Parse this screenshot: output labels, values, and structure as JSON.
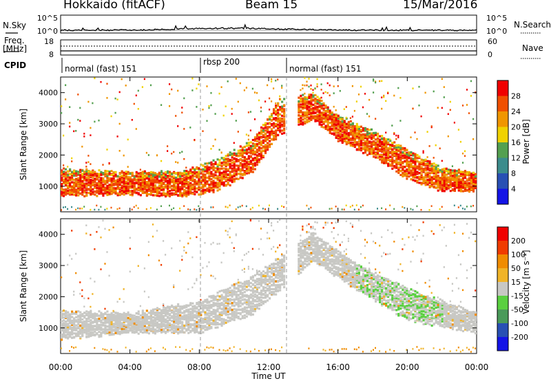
{
  "header": {
    "station": "Hokkaido (fitACF)",
    "beam": "Beam 15",
    "date": "15/Mar/2016"
  },
  "left_labels": {
    "nsky": "N.Sky",
    "freq_line1": "Freq.",
    "freq_line2": "[MHz]",
    "cpid": "CPID"
  },
  "right_labels": {
    "nsearch": "N.Search",
    "nave": "Nave"
  },
  "noise_panel": {
    "left_ticks": [
      "10^5",
      "10^0"
    ],
    "right_ticks": [
      "10^5",
      "10^0"
    ]
  },
  "freq_panel": {
    "left_ticks": [
      "18",
      "8"
    ],
    "right_ticks": [
      "60",
      "0"
    ]
  },
  "cpid_panel": {
    "modes": [
      {
        "label": "normal (fast) 151",
        "start_hour": 0,
        "end_hour": 8
      },
      {
        "label": "rbsp 200",
        "start_hour": 8,
        "end_hour": 13
      },
      {
        "label": "normal (fast) 151",
        "start_hour": 13,
        "end_hour": 24
      }
    ]
  },
  "colors": {
    "power_scale": [
      "#1414e6",
      "#2850b4",
      "#3c8c8c",
      "#54a050",
      "#f0d200",
      "#f09600",
      "#f05000",
      "#f00000"
    ],
    "velocity_scale": [
      "#1414e6",
      "#2850b4",
      "#4a9a5a",
      "#5ad040",
      "#c8c8c4",
      "#f0b428",
      "#f08c00",
      "#f03c00",
      "#f00000"
    ]
  },
  "chart_data": [
    {
      "type": "heatmap",
      "panel": "power",
      "ylabel": "Slant Range [km]",
      "xlabel": "Time UT",
      "x_ticks": [
        "00:00",
        "04:00",
        "08:00",
        "12:00",
        "16:00",
        "20:00",
        "00:00"
      ],
      "y_ticks": [
        1000,
        2000,
        3000,
        4000
      ],
      "x_range_hours": [
        0,
        24
      ],
      "y_range_km": [
        180,
        4500
      ],
      "colorbar": {
        "label": "Power [dB]",
        "ticks": [
          4,
          8,
          12,
          16,
          20,
          24,
          28
        ],
        "range": [
          0,
          32
        ]
      },
      "dominant_band": [
        {
          "hour": 0,
          "lo": 750,
          "hi": 1600
        },
        {
          "hour": 4,
          "lo": 800,
          "hi": 1500
        },
        {
          "hour": 7,
          "lo": 750,
          "hi": 1500
        },
        {
          "hour": 9,
          "lo": 900,
          "hi": 1900
        },
        {
          "hour": 11,
          "lo": 1500,
          "hi": 2500
        },
        {
          "hour": 12.5,
          "lo": 2700,
          "hi": 3800
        },
        {
          "hour": 14.5,
          "lo": 3200,
          "hi": 4000
        },
        {
          "hour": 16,
          "lo": 2500,
          "hi": 3300
        },
        {
          "hour": 18,
          "lo": 2000,
          "hi": 2800
        },
        {
          "hour": 20,
          "lo": 1300,
          "hi": 2200
        },
        {
          "hour": 22,
          "lo": 900,
          "hi": 1600
        },
        {
          "hour": 24,
          "lo": 900,
          "hi": 1500
        }
      ]
    },
    {
      "type": "heatmap",
      "panel": "velocity",
      "ylabel": "Slant Range [km]",
      "xlabel": "Time UT",
      "x_ticks": [
        "00:00",
        "04:00",
        "08:00",
        "12:00",
        "16:00",
        "20:00",
        "00:00"
      ],
      "y_ticks": [
        1000,
        2000,
        3000,
        4000
      ],
      "x_range_hours": [
        0,
        24
      ],
      "y_range_km": [
        180,
        4500
      ],
      "colorbar": {
        "label": "Velocity [m s⁻¹]",
        "ticks": [
          200,
          100,
          50,
          15,
          -15,
          -50,
          -100,
          -200
        ]
      },
      "dominant_band": [
        {
          "hour": 0,
          "lo": 700,
          "hi": 1600
        },
        {
          "hour": 4,
          "lo": 900,
          "hi": 1500
        },
        {
          "hour": 8,
          "lo": 900,
          "hi": 1900
        },
        {
          "hour": 11,
          "lo": 1500,
          "hi": 2700
        },
        {
          "hour": 14.5,
          "lo": 3200,
          "hi": 4100
        },
        {
          "hour": 17,
          "lo": 2300,
          "hi": 3100
        },
        {
          "hour": 20,
          "lo": 1300,
          "hi": 2300
        },
        {
          "hour": 24,
          "lo": 900,
          "hi": 1500
        }
      ]
    }
  ]
}
